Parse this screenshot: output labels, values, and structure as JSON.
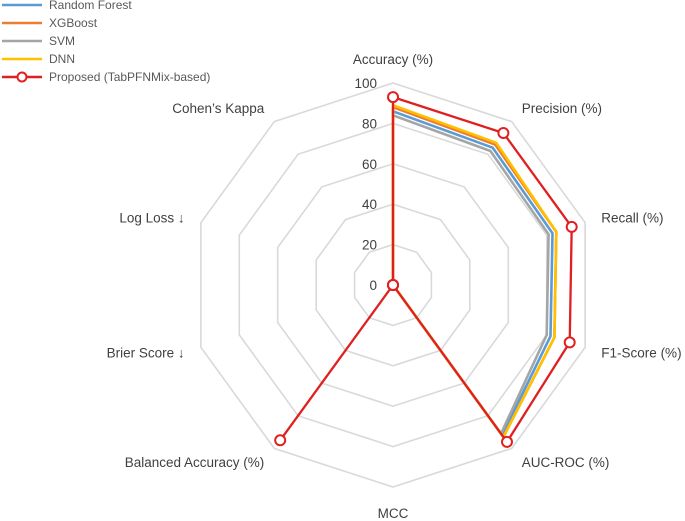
{
  "chart_data": {
    "type": "radar",
    "axes": [
      "Accuracy (%)",
      "Precision (%)",
      "Recall (%)",
      "F1-Score (%)",
      "AUC-ROC (%)",
      "MCC",
      "Balanced Accuracy (%)",
      "Brier Score ↓",
      "Log Loss ↓",
      "Cohen’s Kappa"
    ],
    "rlim": [
      0,
      100
    ],
    "ticks": [
      "0",
      "20",
      "40",
      "60",
      "80",
      "100"
    ],
    "tick_values": [
      0,
      20,
      40,
      60,
      80,
      100
    ],
    "grid": true,
    "legend_position": "top-left",
    "series": [
      {
        "name": "Random Forest",
        "color": "#5b9bd5",
        "marker": "none",
        "values": [
          86,
          84,
          83,
          82,
          92,
          0,
          0,
          0,
          0,
          0
        ]
      },
      {
        "name": "XGBoost",
        "color": "#ed7d31",
        "marker": "none",
        "values": [
          88,
          86,
          85,
          84,
          93,
          0,
          0,
          0,
          0,
          0
        ]
      },
      {
        "name": "SVM",
        "color": "#a5a5a5",
        "marker": "none",
        "values": [
          84,
          82,
          81,
          80,
          91,
          0,
          0,
          0,
          0,
          0
        ]
      },
      {
        "name": "DNN",
        "color": "#ffc000",
        "marker": "none",
        "values": [
          89,
          87,
          85,
          84,
          93,
          0,
          0,
          0,
          0,
          0
        ]
      },
      {
        "name": "Proposed (TabPFNMix-based)",
        "color": "#e02020",
        "marker": "circle",
        "values": [
          93,
          93,
          93,
          92,
          96,
          0,
          95,
          0,
          0,
          0
        ]
      }
    ]
  }
}
